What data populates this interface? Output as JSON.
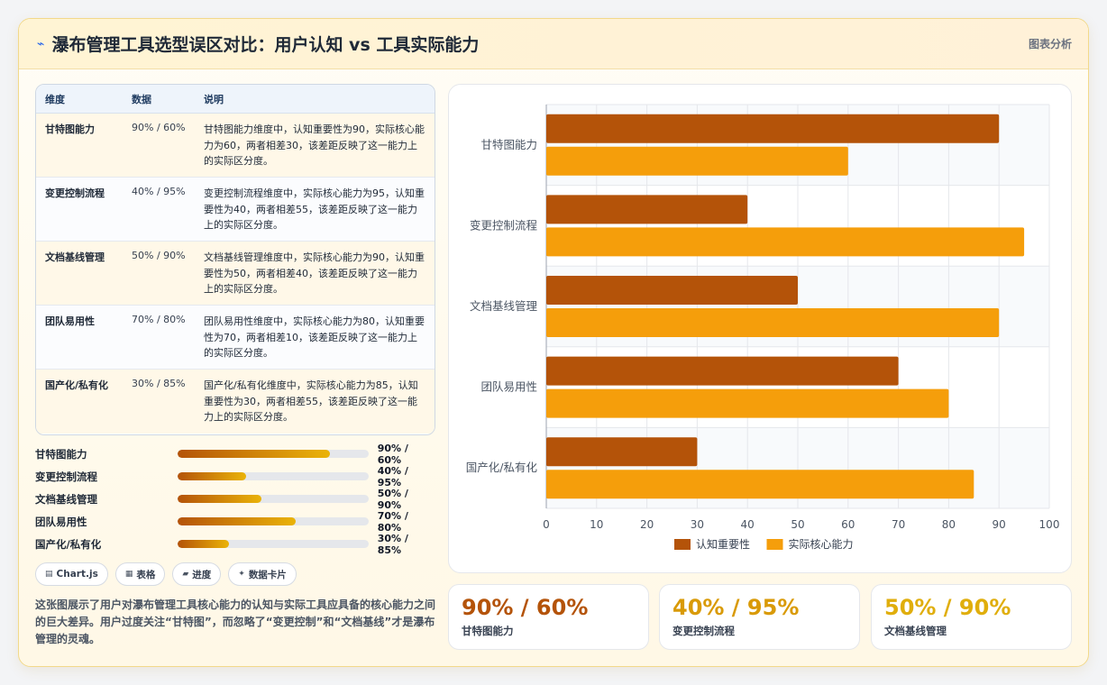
{
  "header": {
    "icon": "lightning-icon",
    "title": "瀑布管理工具选型误区对比：用户认知 vs 工具实际能力",
    "tag": "图表分析"
  },
  "table": {
    "headers": [
      "维度",
      "数据",
      "说明"
    ],
    "rows": [
      {
        "dim": "甘特图能力",
        "data": "90% / 60%",
        "note": "甘特图能力维度中，认知重要性为90，实际核心能力为60，两者相差30，该差距反映了这一能力上的实际区分度。"
      },
      {
        "dim": "变更控制流程",
        "data": "40% / 95%",
        "note": "变更控制流程维度中，实际核心能力为95，认知重要性为40，两者相差55，该差距反映了这一能力上的实际区分度。"
      },
      {
        "dim": "文档基线管理",
        "data": "50% / 90%",
        "note": "文档基线管理维度中，实际核心能力为90，认知重要性为50，两者相差40，该差距反映了这一能力上的实际区分度。"
      },
      {
        "dim": "团队易用性",
        "data": "70% / 80%",
        "note": "团队易用性维度中，实际核心能力为80，认知重要性为70，两者相差10，该差距反映了这一能力上的实际区分度。"
      },
      {
        "dim": "国产化/私有化",
        "data": "30% / 85%",
        "note": "国产化/私有化维度中，实际核心能力为85，认知重要性为30，两者相差55，该差距反映了这一能力上的实际区分度。"
      }
    ]
  },
  "progress": [
    {
      "label": "甘特图能力",
      "value": "90% / 60%",
      "fill_fraction": 0.8
    },
    {
      "label": "变更控制流程",
      "value": "40% / 95%",
      "fill_fraction": 0.36
    },
    {
      "label": "文档基线管理",
      "value": "50% / 90%",
      "fill_fraction": 0.44
    },
    {
      "label": "团队易用性",
      "value": "70% / 80%",
      "fill_fraction": 0.62
    },
    {
      "label": "国产化/私有化",
      "value": "30% / 85%",
      "fill_fraction": 0.27
    }
  ],
  "chips": [
    {
      "icon": "chart-icon",
      "glyph": "▤",
      "label": "Chart.js"
    },
    {
      "icon": "table-icon",
      "glyph": "▦",
      "label": "表格"
    },
    {
      "icon": "folder-icon",
      "glyph": "▰",
      "label": "进度"
    },
    {
      "icon": "sparkle-icon",
      "glyph": "✦",
      "label": "数据卡片"
    }
  ],
  "description": "这张图展示了用户对瀑布管理工具核心能力的认知与实际工具应具备的核心能力之间的巨大差异。用户过度关注“甘特图”，而忽略了“变更控制”和“文档基线”才是瀑布管理的灵魂。",
  "stats": [
    {
      "value": "90% / 60%",
      "label": "甘特图能力",
      "color": "#b45309"
    },
    {
      "value": "40% / 95%",
      "label": "变更控制流程",
      "color": "#d99a06"
    },
    {
      "value": "50% / 90%",
      "label": "文档基线管理",
      "color": "#e0ae0c"
    }
  ],
  "chart_data": {
    "type": "bar",
    "orientation": "horizontal",
    "categories": [
      "甘特图能力",
      "变更控制流程",
      "文档基线管理",
      "团队易用性",
      "国产化/私有化"
    ],
    "series": [
      {
        "name": "认知重要性",
        "values": [
          90,
          40,
          50,
          70,
          30
        ],
        "color": "#b45309"
      },
      {
        "name": "实际核心能力",
        "values": [
          60,
          95,
          90,
          80,
          85
        ],
        "color": "#f59e0b"
      }
    ],
    "xlim": [
      0,
      100
    ],
    "xticks": [
      0,
      10,
      20,
      30,
      40,
      50,
      60,
      70,
      80,
      90,
      100
    ],
    "grid": true,
    "legend": "bottom"
  }
}
